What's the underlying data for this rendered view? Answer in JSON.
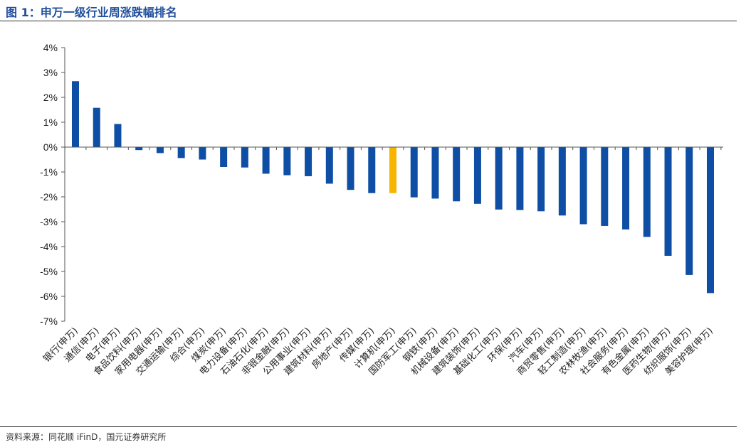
{
  "header": {
    "title": "图 1：申万一级行业周涨跌幅排名"
  },
  "footer": {
    "source": "资料来源：同花顺 iFinD，国元证券研究所"
  },
  "colors": {
    "bar": "#0e4ea4",
    "highlight": "#f7b500",
    "title": "#1f4e9c"
  },
  "chart_data": {
    "type": "bar",
    "title": "申万一级行业周涨跌幅排名",
    "xlabel": "",
    "ylabel": "",
    "ylim": [
      -7,
      4
    ],
    "yticks": [
      "4%",
      "3%",
      "2%",
      "1%",
      "0%",
      "-1%",
      "-2%",
      "-3%",
      "-4%",
      "-5%",
      "-6%",
      "-7%"
    ],
    "ytick_values": [
      4,
      3,
      2,
      1,
      0,
      -1,
      -2,
      -3,
      -4,
      -5,
      -6,
      -7
    ],
    "grid": false,
    "highlight_index": 15,
    "categories": [
      "银行(申万)",
      "通信(申万)",
      "电子(申万)",
      "食品饮料(申万)",
      "家用电器(申万)",
      "交通运输(申万)",
      "综合(申万)",
      "煤炭(申万)",
      "电力设备(申万)",
      "石油石化(申万)",
      "非银金融(申万)",
      "公用事业(申万)",
      "建筑材料(申万)",
      "房地产(申万)",
      "传媒(申万)",
      "计算机(申万)",
      "国防军工(申万)",
      "钢铁(申万)",
      "机械设备(申万)",
      "建筑装饰(申万)",
      "基础化工(申万)",
      "环保(申万)",
      "汽车(申万)",
      "商贸零售(申万)",
      "轻工制造(申万)",
      "农林牧渔(申万)",
      "社会服务(申万)",
      "有色金属(申万)",
      "医药生物(申万)",
      "纺织服饰(申万)",
      "美容护理(申万)"
    ],
    "values": [
      2.65,
      1.58,
      0.93,
      -0.12,
      -0.24,
      -0.44,
      -0.5,
      -0.8,
      -0.82,
      -1.07,
      -1.13,
      -1.17,
      -1.47,
      -1.72,
      -1.85,
      -1.85,
      -2.02,
      -2.07,
      -2.18,
      -2.28,
      -2.51,
      -2.53,
      -2.58,
      -2.75,
      -3.1,
      -3.17,
      -3.31,
      -3.61,
      -4.37,
      -5.14,
      -5.87
    ]
  }
}
